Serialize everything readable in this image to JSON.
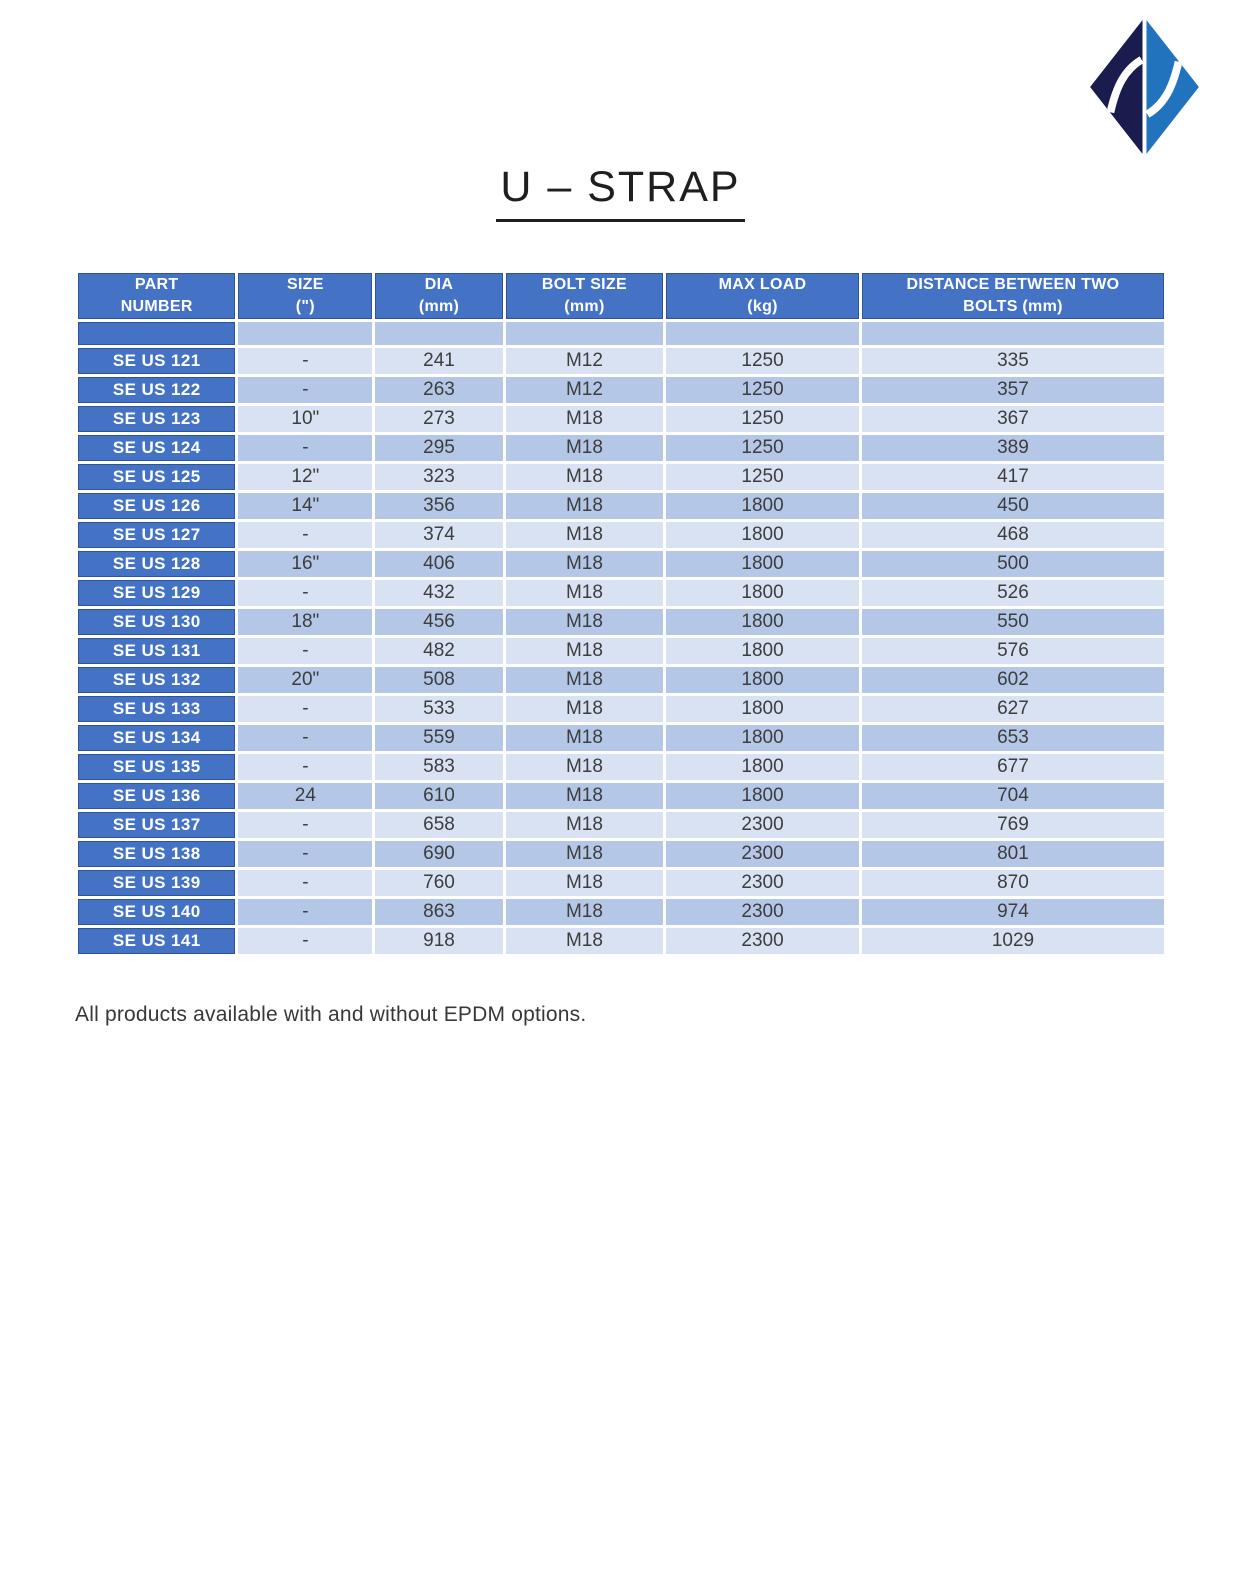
{
  "page": {
    "title": "U – STRAP",
    "footnote": "All products available with and without EPDM options."
  },
  "logo": {
    "icon": "diamond-swoosh-logo",
    "dark_color": "#1B1C4E",
    "blue_color": "#2173BE"
  },
  "colors": {
    "header_bg": "#4472C4",
    "part_column_bg": "#4472C4",
    "row_light": "#D9E2F3",
    "row_medium": "#B4C7E7",
    "header_text": "#FFFFFF",
    "body_text": "#3D3D3D"
  },
  "table": {
    "columns": [
      {
        "id": "part",
        "label": "PART\nNUMBER"
      },
      {
        "id": "size",
        "label": "SIZE\n(\")"
      },
      {
        "id": "dia",
        "label": "DIA\n(mm)"
      },
      {
        "id": "bolt",
        "label": "BOLT SIZE\n(mm)"
      },
      {
        "id": "load",
        "label": "MAX LOAD\n(kg)"
      },
      {
        "id": "dist",
        "label": "DISTANCE BETWEEN TWO\nBOLTS (mm)"
      }
    ],
    "rows": [
      [
        "SE US 121",
        "-",
        "241",
        "M12",
        "1250",
        "335"
      ],
      [
        "SE US 122",
        "-",
        "263",
        "M12",
        "1250",
        "357"
      ],
      [
        "SE US 123",
        "10\"",
        "273",
        "M18",
        "1250",
        "367"
      ],
      [
        "SE US 124",
        "-",
        "295",
        "M18",
        "1250",
        "389"
      ],
      [
        "SE US 125",
        "12\"",
        "323",
        "M18",
        "1250",
        "417"
      ],
      [
        "SE US 126",
        "14\"",
        "356",
        "M18",
        "1800",
        "450"
      ],
      [
        "SE US 127",
        "-",
        "374",
        "M18",
        "1800",
        "468"
      ],
      [
        "SE US 128",
        "16\"",
        "406",
        "M18",
        "1800",
        "500"
      ],
      [
        "SE US 129",
        "-",
        "432",
        "M18",
        "1800",
        "526"
      ],
      [
        "SE US 130",
        "18\"",
        "456",
        "M18",
        "1800",
        "550"
      ],
      [
        "SE US 131",
        "-",
        "482",
        "M18",
        "1800",
        "576"
      ],
      [
        "SE US 132",
        "20\"",
        "508",
        "M18",
        "1800",
        "602"
      ],
      [
        "SE US 133",
        "-",
        "533",
        "M18",
        "1800",
        "627"
      ],
      [
        "SE US 134",
        "-",
        "559",
        "M18",
        "1800",
        "653"
      ],
      [
        "SE US 135",
        "-",
        "583",
        "M18",
        "1800",
        "677"
      ],
      [
        "SE US 136",
        "24",
        "610",
        "M18",
        "1800",
        "704"
      ],
      [
        "SE US 137",
        "-",
        "658",
        "M18",
        "2300",
        "769"
      ],
      [
        "SE US 138",
        "-",
        "690",
        "M18",
        "2300",
        "801"
      ],
      [
        "SE US 139",
        "-",
        "760",
        "M18",
        "2300",
        "870"
      ],
      [
        "SE US 140",
        "-",
        "863",
        "M18",
        "2300",
        "974"
      ],
      [
        "SE US 141",
        "-",
        "918",
        "M18",
        "2300",
        "1029"
      ]
    ]
  }
}
